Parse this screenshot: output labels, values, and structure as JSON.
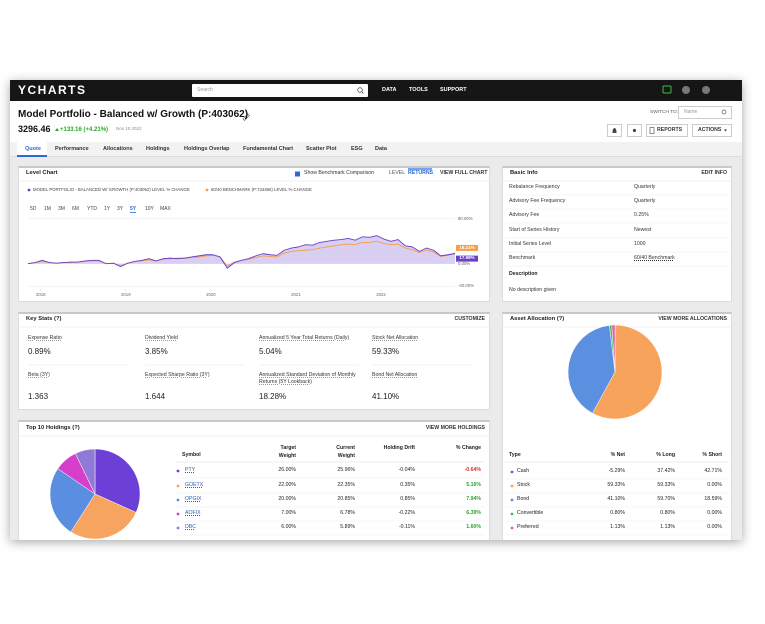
{
  "nav": {
    "logo": "YCHARTS",
    "search": "Search",
    "links": [
      "DATA",
      "TOOLS",
      "SUPPORT"
    ]
  },
  "header": {
    "title": "Model Portfolio - Balanced w/ Growth (P:403062)",
    "price": "3296.46",
    "change": "+133.16 (+4.21%)",
    "date": "Nov 10 2022",
    "switch_to": "SWITCH TO:",
    "switch_placeholder": "Name",
    "buttons": [
      "REPORTS",
      "ACTIONS"
    ]
  },
  "tabs": {
    "items": [
      "Quote",
      "Performance",
      "Allocations",
      "Holdings",
      "Holdings Overlap",
      "Fundamental Chart",
      "Scatter Plot",
      "ESG",
      "Data"
    ],
    "active": "Quote"
  },
  "level_chart": {
    "type": "line",
    "title": "Level Chart",
    "show_benchmark": "Show Benchmark Comparison",
    "toggles": [
      "LEVEL",
      "RETURNS"
    ],
    "active_toggle": "RETURNS",
    "full": "VIEW FULL CHART",
    "ranges": [
      "5D",
      "1M",
      "3M",
      "6M",
      "YTD",
      "1Y",
      "3Y",
      "5Y",
      "10Y",
      "MAX"
    ],
    "active_range": "5Y",
    "xlim": [
      2017.85,
      2022.87
    ],
    "xticks": [
      2018,
      2019,
      2020,
      2021,
      2022
    ],
    "ylim": [
      -45,
      85
    ],
    "yticks": [
      {
        "value": 80,
        "label": "80.00%"
      },
      {
        "value": 0,
        "label": "0.00%"
      },
      {
        "value": -40,
        "label": "-40.00%"
      }
    ],
    "grid": true,
    "series": [
      {
        "name": "MODEL PORTFOLIO - BALANCED W/ GROWTH (P:403062) LEVEL % CHANGE",
        "color": "#6a3fc8",
        "area_color": "#d9cff3",
        "end_label": "17.98%",
        "values": [
          0,
          2,
          6,
          2,
          1,
          2,
          3,
          3,
          5,
          6,
          6,
          0,
          1,
          -5,
          1,
          4,
          6,
          9,
          5,
          9,
          10,
          9,
          10,
          12,
          14,
          16,
          16,
          12,
          -8,
          2,
          6,
          9,
          14,
          18,
          16,
          15,
          24,
          28,
          30,
          34,
          33,
          38,
          40,
          42,
          43,
          45,
          42,
          48,
          47,
          50,
          44,
          40,
          43,
          32,
          30,
          22,
          28,
          24,
          14,
          16,
          17.98
        ]
      },
      {
        "name": "60/40 BENCHMARK (P:734366) LEVEL % CHANGE",
        "color": "#f79d4a",
        "end_label": "19.21%",
        "values": [
          0,
          2,
          4,
          2,
          1,
          2,
          2,
          3,
          4,
          5,
          5,
          0,
          1,
          -4,
          1,
          4,
          5,
          7,
          5,
          8,
          9,
          10,
          10,
          11,
          12,
          14,
          15,
          12,
          -4,
          3,
          6,
          8,
          11,
          14,
          13,
          12,
          19,
          22,
          23,
          24,
          25,
          28,
          30,
          32,
          34,
          35,
          34,
          38,
          38,
          40,
          36,
          34,
          35,
          28,
          25,
          20,
          24,
          21,
          13,
          15,
          19.21
        ]
      }
    ]
  },
  "basic_info": {
    "title": "Basic Info",
    "edit": "EDIT INFO",
    "rows": [
      [
        "Rebalance Frequency",
        "Quarterly"
      ],
      [
        "Advisory Fee Frequency",
        "Quarterly"
      ],
      [
        "Advisory Fee",
        "0.25%"
      ],
      [
        "Start of Series History",
        "Newest"
      ],
      [
        "Initial Series Level",
        "1000"
      ],
      [
        "Benchmark",
        "60/40 Benchmark"
      ]
    ],
    "description_label": "Description",
    "description": "No description given"
  },
  "key_stats": {
    "title": "Key Stats (?)",
    "customize": "CUSTOMIZE",
    "items": [
      {
        "label": "Expense Ratio",
        "value": "0.89%"
      },
      {
        "label": "Dividend Yield",
        "value": "3.85%"
      },
      {
        "label": "Annualized 5 Year Total Returns (Daily)",
        "value": "5.04%"
      },
      {
        "label": "Stock Net Allocation",
        "value": "59.33%"
      },
      {
        "label": "Beta (3Y)",
        "value": "1.363"
      },
      {
        "label": "Expected Sharpe Ratio (3Y)",
        "value": "1.644"
      },
      {
        "label": "Annualized Standard Deviation of Monthly Returns (5Y Lookback)",
        "value": "18.28%"
      },
      {
        "label": "Bond Net Allocation",
        "value": "41.10%"
      }
    ]
  },
  "holdings": {
    "type": "pie",
    "title": "Top 10 Holdings (?)",
    "more": "VIEW MORE HOLDINGS",
    "headers": [
      "Symbol",
      "Target Weight",
      "Current Weight",
      "Holding Drift",
      "% Change"
    ],
    "symbols": [
      "PTY",
      "GOETX",
      "OPGIX",
      "AOFIX",
      "DBC"
    ],
    "colors": [
      "#6c3fd6",
      "#f6a45f",
      "#5a8ee0",
      "#d63fc9",
      "#8f7ad8"
    ],
    "target": [
      "26.00%",
      "22.00%",
      "20.00%",
      "7.00%",
      "6.00%"
    ],
    "current": {
      "values": [
        25.96,
        22.35,
        20.85,
        6.78,
        5.89
      ],
      "value_labels": [
        "25.96%",
        "22.35%",
        "20.85%",
        "6.78%",
        "5.89%"
      ]
    },
    "drift": [
      "-0.04%",
      "0.35%",
      "0.85%",
      "-0.22%",
      "-0.11%"
    ],
    "change": [
      "-0.64%",
      "5.16%",
      "7.94%",
      "6.39%",
      "1.60%"
    ],
    "change_colors": [
      "#e0282e",
      "#2aa52a",
      "#2aa52a",
      "#2aa52a",
      "#2aa52a"
    ]
  },
  "asset_allocation": {
    "type": "pie",
    "title": "Asset Allocation (?)",
    "more": "VIEW MORE ALLOCATIONS",
    "headers": [
      "Type",
      "% Net",
      "% Long",
      "% Short"
    ],
    "types": [
      "Cash",
      "Stock",
      "Bond",
      "Convertible",
      "Preferred"
    ],
    "colors": [
      "#7b52d6",
      "#f7a35c",
      "#5b8fe0",
      "#3cbf5a",
      "#e55ca8"
    ],
    "net": {
      "values": [
        -5.29,
        59.33,
        41.1,
        0.8,
        1.13
      ],
      "value_labels": [
        "-5.29%",
        "59.33%",
        "41.10%",
        "0.80%",
        "1.13%"
      ]
    },
    "long": [
      "37.42%",
      "59.33%",
      "59.70%",
      "0.80%",
      "1.13%"
    ],
    "short": [
      "42.71%",
      "0.00%",
      "18.59%",
      "0.00%",
      "0.00%"
    ]
  }
}
